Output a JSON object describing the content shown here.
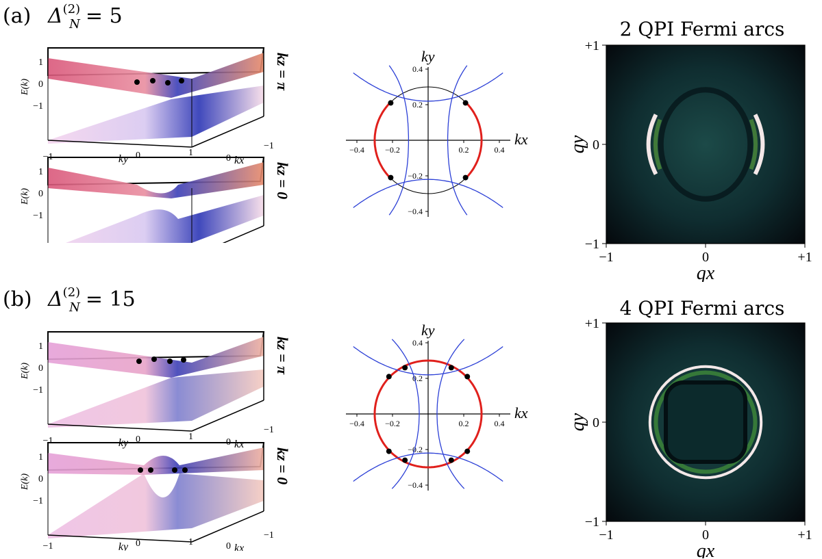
{
  "panels": [
    {
      "label": "(a)",
      "delta": {
        "symbol": "Δ",
        "sup": "(2)",
        "sub": "N",
        "value": "= 5"
      },
      "band_top_kz": "kz = π",
      "band_bottom_kz": "kz = 0",
      "band_tick_labels": {
        "e_vals": [
          "1",
          "0",
          "−1"
        ],
        "ky_ticks": [
          "−1",
          "0",
          "1"
        ],
        "kx_ticks": [
          "0",
          "−1"
        ]
      },
      "band_axis": {
        "energy": "E(k)",
        "ky": "ky",
        "kx": "kx"
      },
      "qpi_title": "2 QPI Fermi arcs"
    },
    {
      "label": "(b)",
      "delta": {
        "symbol": "Δ",
        "sup": "(2)",
        "sub": "N",
        "value": "= 15"
      },
      "band_top_kz": "kz = π",
      "band_bottom_kz": "kz = 0",
      "band_tick_labels": {
        "e_vals": [
          "1",
          "0",
          "−1"
        ],
        "ky_ticks": [
          "−1",
          "0",
          "1"
        ],
        "kx_ticks": [
          "0",
          "−1"
        ]
      },
      "band_axis": {
        "energy": "E(k)",
        "ky": "ky",
        "kx": "kx"
      },
      "qpi_title": "4 QPI Fermi arcs"
    }
  ],
  "chart_data": [
    {
      "type": "line",
      "panel": "a",
      "xlabel": "kx",
      "ylabel": "ky",
      "xlim": [
        -0.5,
        0.5
      ],
      "ylim": [
        -0.45,
        0.45
      ],
      "xticks": [
        -0.4,
        -0.2,
        0.2,
        0.4
      ],
      "yticks": [
        0.4,
        0.2,
        -0.2,
        -0.4
      ],
      "tick_labels_x": [
        "−0.4",
        "−0.2",
        "0.2",
        "0.4"
      ],
      "tick_labels_y": [
        "0.4",
        "0.2",
        "−0.2",
        "−0.4"
      ],
      "circle_radius": 0.3,
      "red_arc_half_angle_deg": 45,
      "crossing_points": [
        [
          0.21,
          0.21
        ],
        [
          -0.21,
          0.21
        ],
        [
          0.21,
          -0.21
        ],
        [
          -0.21,
          -0.21
        ]
      ],
      "blue_min_x": 0.11,
      "blue_curve_scale": 0.35,
      "colors": {
        "circle": "#000000",
        "arc": "#e0201c",
        "curve": "#2b3fd6"
      }
    },
    {
      "type": "line",
      "panel": "b",
      "xlabel": "kx",
      "ylabel": "ky",
      "xlim": [
        -0.5,
        0.5
      ],
      "ylim": [
        -0.45,
        0.45
      ],
      "xticks": [
        -0.4,
        -0.2,
        0.2,
        0.4
      ],
      "yticks": [
        0.4,
        0.2,
        -0.2,
        -0.4
      ],
      "tick_labels_x": [
        "−0.4",
        "−0.2",
        "0.2",
        "0.4"
      ],
      "tick_labels_y": [
        "0.4",
        "0.2",
        "−0.2",
        "−0.4"
      ],
      "circle_radius": 0.3,
      "red_arc_half_angle_deg": 90,
      "crossing_points": [
        [
          0.22,
          0.21
        ],
        [
          0.13,
          0.26
        ],
        [
          -0.22,
          0.21
        ],
        [
          -0.13,
          0.26
        ],
        [
          0.22,
          -0.21
        ],
        [
          0.13,
          -0.26
        ],
        [
          -0.22,
          -0.21
        ],
        [
          -0.13,
          -0.26
        ]
      ],
      "blue_min_x": 0.05,
      "blue_curve_scale": 0.6,
      "colors": {
        "circle": "#000000",
        "arc": "#e0201c",
        "curve": "#2b3fd6"
      }
    },
    {
      "type": "heatmap",
      "panel": "a",
      "title": "2 QPI Fermi arcs",
      "xlabel": "qx",
      "ylabel": "qy",
      "xlim": [
        -1,
        1
      ],
      "ylim": [
        -1,
        1
      ],
      "tick_labels_x": [
        "−1",
        "0",
        "+1"
      ],
      "tick_labels_y": [
        "+1",
        "0",
        "−1"
      ],
      "arcs": 2
    },
    {
      "type": "heatmap",
      "panel": "b",
      "title": "4 QPI Fermi arcs",
      "xlabel": "qx",
      "ylabel": "qy",
      "xlim": [
        -1,
        1
      ],
      "ylim": [
        -1,
        1
      ],
      "tick_labels_x": [
        "−1",
        "0",
        "+1"
      ],
      "tick_labels_y": [
        "+1",
        "0",
        "−1"
      ],
      "arcs": 4
    }
  ]
}
